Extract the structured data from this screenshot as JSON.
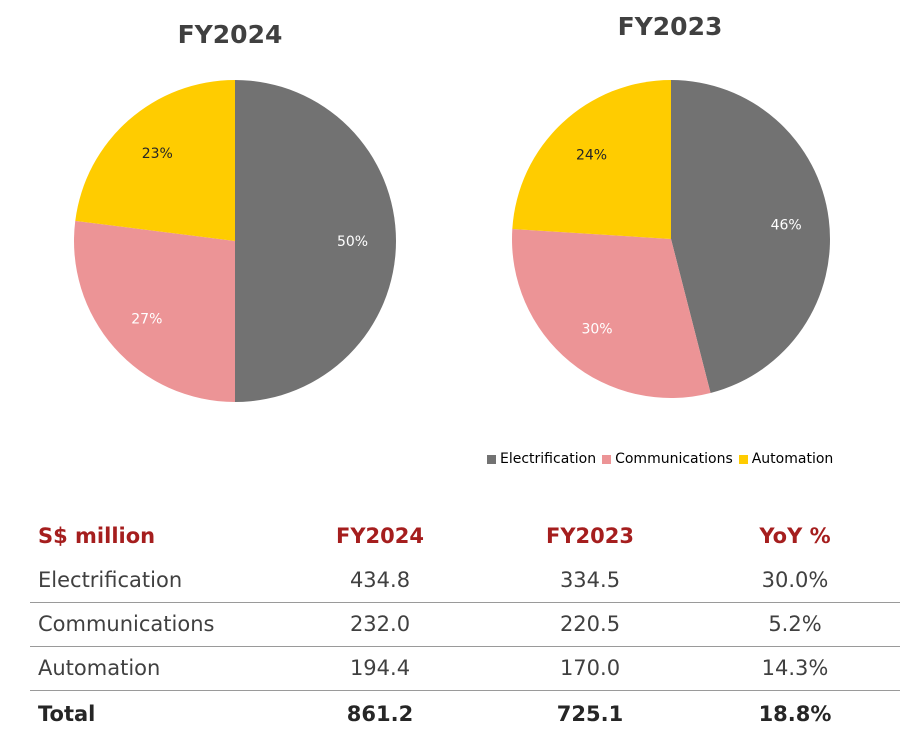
{
  "colors": {
    "electrification": "#727272",
    "communications": "#ec9496",
    "automation": "#ffcc00",
    "header_red": "#a51e1e"
  },
  "chart_data": [
    {
      "type": "pie",
      "title": "FY2024",
      "categories": [
        "Electrification",
        "Communications",
        "Automation"
      ],
      "values": [
        50,
        27,
        23
      ],
      "labels": [
        "50%",
        "27%",
        "23%"
      ]
    },
    {
      "type": "pie",
      "title": "FY2023",
      "categories": [
        "Electrification",
        "Communications",
        "Automation"
      ],
      "values": [
        46,
        30,
        24
      ],
      "labels": [
        "46%",
        "30%",
        "24%"
      ]
    }
  ],
  "legend": [
    "Electrification",
    "Communications",
    "Automation"
  ],
  "table": {
    "headers": [
      "S$ million",
      "FY2024",
      "FY2023",
      "YoY %"
    ],
    "rows": [
      [
        "Electrification",
        "434.8",
        "334.5",
        "30.0%"
      ],
      [
        "Communications",
        "232.0",
        "220.5",
        "5.2%"
      ],
      [
        "Automation",
        "194.4",
        "170.0",
        "14.3%"
      ],
      [
        "Total",
        "861.2",
        "725.1",
        "18.8%"
      ]
    ]
  }
}
